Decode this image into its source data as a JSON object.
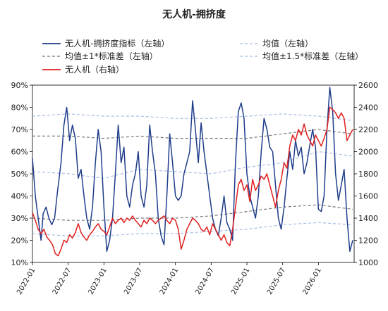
{
  "chart_data": {
    "type": "line",
    "title": "无人机-拥挤度",
    "x_ticks": [
      "2022-01",
      "2022-07",
      "2023-01",
      "2023-07",
      "2024-01",
      "2024-07",
      "2025-01",
      "2025-07",
      "2026-01"
    ],
    "left_axis": {
      "ylim": [
        0.1,
        0.9
      ],
      "ticks": [
        "10%",
        "20%",
        "30%",
        "40%",
        "50%",
        "60%",
        "70%",
        "80%",
        "90%"
      ]
    },
    "right_axis": {
      "ylim": [
        1000,
        2600
      ],
      "ticks": [
        "1000",
        "1200",
        "1400",
        "1600",
        "1800",
        "2000",
        "2200",
        "2400",
        "2600"
      ]
    },
    "legend": [
      {
        "name": "无人机-拥挤度指标（左轴）",
        "color": "#1f3d8a",
        "style": "solid"
      },
      {
        "name": "均值（左轴）",
        "color": "#a8bde6",
        "style": "dashed"
      },
      {
        "name": "均值±1*标准差（左轴）",
        "color": "#777777",
        "style": "dashed"
      },
      {
        "name": "均值±1.5*标准差（左轴）",
        "color": "#a8bde6",
        "style": "dashed"
      },
      {
        "name": "无人机（右轴）",
        "color": "#e02020",
        "style": "solid"
      }
    ],
    "series": [
      {
        "name": "无人机-拥挤度指标（左轴）",
        "axis": "left",
        "color": "#1f3d8a",
        "points": [
          [
            2022.0,
            0.57
          ],
          [
            2022.04,
            0.4
          ],
          [
            2022.08,
            0.3
          ],
          [
            2022.12,
            0.2
          ],
          [
            2022.15,
            0.32
          ],
          [
            2022.19,
            0.35
          ],
          [
            2022.23,
            0.3
          ],
          [
            2022.27,
            0.27
          ],
          [
            2022.31,
            0.3
          ],
          [
            2022.35,
            0.42
          ],
          [
            2022.4,
            0.55
          ],
          [
            2022.44,
            0.72
          ],
          [
            2022.48,
            0.8
          ],
          [
            2022.52,
            0.65
          ],
          [
            2022.56,
            0.72
          ],
          [
            2022.6,
            0.66
          ],
          [
            2022.64,
            0.48
          ],
          [
            2022.68,
            0.52
          ],
          [
            2022.72,
            0.4
          ],
          [
            2022.76,
            0.3
          ],
          [
            2022.8,
            0.25
          ],
          [
            2022.84,
            0.35
          ],
          [
            2022.88,
            0.55
          ],
          [
            2022.92,
            0.7
          ],
          [
            2022.96,
            0.6
          ],
          [
            2023.0,
            0.35
          ],
          [
            2023.04,
            0.15
          ],
          [
            2023.08,
            0.2
          ],
          [
            2023.12,
            0.3
          ],
          [
            2023.16,
            0.5
          ],
          [
            2023.2,
            0.72
          ],
          [
            2023.24,
            0.55
          ],
          [
            2023.28,
            0.62
          ],
          [
            2023.32,
            0.4
          ],
          [
            2023.36,
            0.35
          ],
          [
            2023.4,
            0.45
          ],
          [
            2023.44,
            0.5
          ],
          [
            2023.48,
            0.6
          ],
          [
            2023.52,
            0.4
          ],
          [
            2023.56,
            0.35
          ],
          [
            2023.6,
            0.45
          ],
          [
            2023.64,
            0.72
          ],
          [
            2023.68,
            0.6
          ],
          [
            2023.72,
            0.5
          ],
          [
            2023.76,
            0.3
          ],
          [
            2023.8,
            0.22
          ],
          [
            2023.84,
            0.18
          ],
          [
            2023.88,
            0.4
          ],
          [
            2023.92,
            0.68
          ],
          [
            2023.96,
            0.55
          ],
          [
            2024.0,
            0.4
          ],
          [
            2024.04,
            0.38
          ],
          [
            2024.08,
            0.4
          ],
          [
            2024.12,
            0.5
          ],
          [
            2024.16,
            0.55
          ],
          [
            2024.2,
            0.6
          ],
          [
            2024.24,
            0.83
          ],
          [
            2024.28,
            0.7
          ],
          [
            2024.32,
            0.55
          ],
          [
            2024.36,
            0.73
          ],
          [
            2024.4,
            0.6
          ],
          [
            2024.44,
            0.5
          ],
          [
            2024.48,
            0.4
          ],
          [
            2024.52,
            0.3
          ],
          [
            2024.56,
            0.25
          ],
          [
            2024.6,
            0.22
          ],
          [
            2024.64,
            0.3
          ],
          [
            2024.68,
            0.4
          ],
          [
            2024.72,
            0.28
          ],
          [
            2024.76,
            0.25
          ],
          [
            2024.8,
            0.2
          ],
          [
            2024.84,
            0.55
          ],
          [
            2024.88,
            0.78
          ],
          [
            2024.92,
            0.82
          ],
          [
            2024.96,
            0.75
          ],
          [
            2025.0,
            0.5
          ],
          [
            2025.04,
            0.4
          ],
          [
            2025.08,
            0.35
          ],
          [
            2025.12,
            0.3
          ],
          [
            2025.16,
            0.4
          ],
          [
            2025.2,
            0.6
          ],
          [
            2025.24,
            0.75
          ],
          [
            2025.28,
            0.7
          ],
          [
            2025.32,
            0.62
          ],
          [
            2025.36,
            0.6
          ],
          [
            2025.4,
            0.45
          ],
          [
            2025.44,
            0.3
          ],
          [
            2025.48,
            0.25
          ],
          [
            2025.52,
            0.35
          ],
          [
            2025.56,
            0.48
          ],
          [
            2025.6,
            0.6
          ],
          [
            2025.64,
            0.52
          ],
          [
            2025.68,
            0.65
          ],
          [
            2025.72,
            0.58
          ],
          [
            2025.76,
            0.62
          ],
          [
            2025.8,
            0.5
          ],
          [
            2025.84,
            0.55
          ],
          [
            2025.88,
            0.63
          ],
          [
            2025.92,
            0.7
          ],
          [
            2025.96,
            0.62
          ],
          [
            2026.0,
            0.34
          ],
          [
            2026.04,
            0.33
          ],
          [
            2026.08,
            0.4
          ],
          [
            2026.12,
            0.7
          ],
          [
            2026.16,
            0.89
          ],
          [
            2026.2,
            0.78
          ],
          [
            2026.24,
            0.5
          ],
          [
            2026.28,
            0.38
          ],
          [
            2026.32,
            0.45
          ],
          [
            2026.36,
            0.52
          ],
          [
            2026.4,
            0.3
          ],
          [
            2026.44,
            0.15
          ],
          [
            2026.48,
            0.2
          ]
        ]
      },
      {
        "name": "无人机（右轴）",
        "axis": "right",
        "color": "#e02020",
        "points": [
          [
            2022.0,
            1450
          ],
          [
            2022.04,
            1380
          ],
          [
            2022.08,
            1300
          ],
          [
            2022.12,
            1260
          ],
          [
            2022.16,
            1300
          ],
          [
            2022.2,
            1230
          ],
          [
            2022.24,
            1200
          ],
          [
            2022.28,
            1160
          ],
          [
            2022.32,
            1080
          ],
          [
            2022.36,
            1060
          ],
          [
            2022.4,
            1120
          ],
          [
            2022.44,
            1200
          ],
          [
            2022.48,
            1180
          ],
          [
            2022.52,
            1250
          ],
          [
            2022.56,
            1220
          ],
          [
            2022.6,
            1270
          ],
          [
            2022.64,
            1350
          ],
          [
            2022.68,
            1270
          ],
          [
            2022.72,
            1230
          ],
          [
            2022.76,
            1200
          ],
          [
            2022.8,
            1250
          ],
          [
            2022.84,
            1280
          ],
          [
            2022.88,
            1320
          ],
          [
            2022.92,
            1350
          ],
          [
            2022.96,
            1300
          ],
          [
            2023.0,
            1280
          ],
          [
            2023.04,
            1250
          ],
          [
            2023.08,
            1320
          ],
          [
            2023.12,
            1400
          ],
          [
            2023.16,
            1350
          ],
          [
            2023.2,
            1380
          ],
          [
            2023.24,
            1400
          ],
          [
            2023.28,
            1360
          ],
          [
            2023.32,
            1400
          ],
          [
            2023.36,
            1380
          ],
          [
            2023.4,
            1420
          ],
          [
            2023.44,
            1380
          ],
          [
            2023.48,
            1350
          ],
          [
            2023.52,
            1320
          ],
          [
            2023.56,
            1380
          ],
          [
            2023.6,
            1350
          ],
          [
            2023.64,
            1400
          ],
          [
            2023.68,
            1380
          ],
          [
            2023.72,
            1350
          ],
          [
            2023.76,
            1380
          ],
          [
            2023.8,
            1400
          ],
          [
            2023.84,
            1420
          ],
          [
            2023.88,
            1380
          ],
          [
            2023.92,
            1350
          ],
          [
            2023.96,
            1400
          ],
          [
            2024.0,
            1380
          ],
          [
            2024.04,
            1300
          ],
          [
            2024.08,
            1120
          ],
          [
            2024.12,
            1200
          ],
          [
            2024.16,
            1300
          ],
          [
            2024.2,
            1350
          ],
          [
            2024.24,
            1400
          ],
          [
            2024.28,
            1380
          ],
          [
            2024.32,
            1350
          ],
          [
            2024.36,
            1300
          ],
          [
            2024.4,
            1280
          ],
          [
            2024.44,
            1320
          ],
          [
            2024.48,
            1250
          ],
          [
            2024.52,
            1350
          ],
          [
            2024.56,
            1300
          ],
          [
            2024.6,
            1250
          ],
          [
            2024.64,
            1200
          ],
          [
            2024.68,
            1250
          ],
          [
            2024.72,
            1180
          ],
          [
            2024.76,
            1150
          ],
          [
            2024.8,
            1300
          ],
          [
            2024.84,
            1500
          ],
          [
            2024.88,
            1700
          ],
          [
            2024.92,
            1750
          ],
          [
            2024.96,
            1650
          ],
          [
            2025.0,
            1700
          ],
          [
            2025.04,
            1550
          ],
          [
            2025.08,
            1750
          ],
          [
            2025.12,
            1650
          ],
          [
            2025.16,
            1700
          ],
          [
            2025.2,
            1780
          ],
          [
            2025.24,
            1750
          ],
          [
            2025.28,
            1800
          ],
          [
            2025.32,
            1700
          ],
          [
            2025.36,
            1600
          ],
          [
            2025.4,
            1500
          ],
          [
            2025.44,
            1650
          ],
          [
            2025.48,
            1750
          ],
          [
            2025.52,
            1900
          ],
          [
            2025.56,
            1850
          ],
          [
            2025.6,
            2050
          ],
          [
            2025.64,
            2150
          ],
          [
            2025.68,
            2100
          ],
          [
            2025.72,
            2200
          ],
          [
            2025.76,
            2150
          ],
          [
            2025.8,
            2250
          ],
          [
            2025.84,
            2150
          ],
          [
            2025.88,
            2100
          ],
          [
            2025.92,
            2050
          ],
          [
            2025.96,
            2150
          ],
          [
            2026.0,
            2100
          ],
          [
            2026.04,
            2050
          ],
          [
            2026.08,
            2120
          ],
          [
            2026.12,
            2200
          ],
          [
            2026.16,
            2400
          ],
          [
            2026.2,
            2380
          ],
          [
            2026.24,
            2350
          ],
          [
            2026.28,
            2300
          ],
          [
            2026.32,
            2350
          ],
          [
            2026.36,
            2300
          ],
          [
            2026.4,
            2100
          ],
          [
            2026.44,
            2150
          ],
          [
            2026.48,
            2200
          ]
        ]
      },
      {
        "name": "均值（左轴）",
        "axis": "left",
        "color": "#a8bde6",
        "points": [
          [
            2022.0,
            0.51
          ],
          [
            2022.5,
            0.5
          ],
          [
            2023.0,
            0.48
          ],
          [
            2023.5,
            0.52
          ],
          [
            2024.0,
            0.51
          ],
          [
            2024.5,
            0.5
          ],
          [
            2025.0,
            0.53
          ],
          [
            2025.5,
            0.55
          ],
          [
            2026.0,
            0.6
          ],
          [
            2026.48,
            0.58
          ]
        ]
      },
      {
        "name": "均值+1*标准差（左轴）",
        "axis": "left",
        "color": "#777777",
        "points": [
          [
            2022.0,
            0.67
          ],
          [
            2022.5,
            0.67
          ],
          [
            2023.0,
            0.66
          ],
          [
            2023.5,
            0.67
          ],
          [
            2024.0,
            0.66
          ],
          [
            2024.5,
            0.66
          ],
          [
            2025.0,
            0.66
          ],
          [
            2025.5,
            0.68
          ],
          [
            2026.0,
            0.7
          ],
          [
            2026.48,
            0.68
          ]
        ]
      },
      {
        "name": "均值-1*标准差（左轴）",
        "axis": "left",
        "color": "#777777",
        "points": [
          [
            2022.0,
            0.3
          ],
          [
            2022.5,
            0.29
          ],
          [
            2023.0,
            0.29
          ],
          [
            2023.5,
            0.3
          ],
          [
            2024.0,
            0.3
          ],
          [
            2024.5,
            0.31
          ],
          [
            2025.0,
            0.33
          ],
          [
            2025.5,
            0.35
          ],
          [
            2026.0,
            0.36
          ],
          [
            2026.48,
            0.34
          ]
        ]
      },
      {
        "name": "均值+1.5*标准差（左轴）",
        "axis": "left",
        "color": "#a8bde6",
        "points": [
          [
            2022.0,
            0.76
          ],
          [
            2022.5,
            0.77
          ],
          [
            2023.0,
            0.76
          ],
          [
            2023.5,
            0.76
          ],
          [
            2024.0,
            0.75
          ],
          [
            2024.5,
            0.75
          ],
          [
            2025.0,
            0.76
          ],
          [
            2025.5,
            0.77
          ],
          [
            2026.0,
            0.76
          ],
          [
            2026.48,
            0.74
          ]
        ]
      },
      {
        "name": "均值-1.5*标准差（左轴）",
        "axis": "left",
        "color": "#a8bde6",
        "points": [
          [
            2022.0,
            0.23
          ],
          [
            2022.5,
            0.22
          ],
          [
            2023.0,
            0.22
          ],
          [
            2023.5,
            0.23
          ],
          [
            2024.0,
            0.23
          ],
          [
            2024.5,
            0.24
          ],
          [
            2025.0,
            0.25
          ],
          [
            2025.5,
            0.27
          ],
          [
            2026.0,
            0.28
          ],
          [
            2026.48,
            0.27
          ]
        ]
      }
    ]
  }
}
